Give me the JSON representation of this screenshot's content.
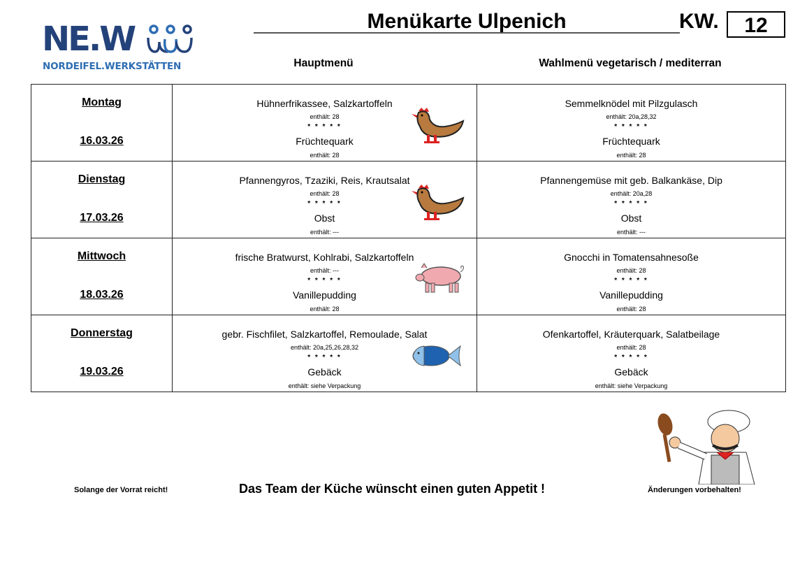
{
  "logo": {
    "text": "NE.W",
    "subtitle": "NORDEIFEL.WERKSTÄTTEN"
  },
  "header": {
    "title": "Menükarte Ulpenich",
    "kw_label": "KW.",
    "kw_value": "12"
  },
  "columns": {
    "main": "Hauptmenü",
    "alt": "Wahlmenü vegetarisch / mediterran"
  },
  "days": [
    {
      "name": "Montag",
      "date": "16.03.26",
      "icon": "chicken-icon",
      "main": {
        "dish": "Hühnerfrikassee, Salzkartoffeln",
        "allergens": "enthält: 28",
        "stars": "* * * * *",
        "dessert": "Früchtequark",
        "dessert_allergens": "enthält: 28"
      },
      "alt": {
        "dish": "Semmelknödel mit Pilzgulasch",
        "allergens": "enthält: 20a,28,32",
        "stars": "* * * * *",
        "dessert": "Früchtequark",
        "dessert_allergens": "enthält: 28"
      }
    },
    {
      "name": "Dienstag",
      "date": "17.03.26",
      "icon": "chicken-icon",
      "main": {
        "dish": "Pfannengyros, Tzaziki, Reis, Krautsalat",
        "allergens": "enthält: 28",
        "stars": "* * * * *",
        "dessert": "Obst",
        "dessert_allergens": "enthält: ---"
      },
      "alt": {
        "dish": "Pfannengemüse mit geb. Balkankäse, Dip",
        "allergens": "enthält: 20a,28",
        "stars": "* * * * *",
        "dessert": "Obst",
        "dessert_allergens": "enthält: ---"
      }
    },
    {
      "name": "Mittwoch",
      "date": "18.03.26",
      "icon": "pig-icon",
      "main": {
        "dish": "frische Bratwurst, Kohlrabi, Salzkartoffeln",
        "allergens": "enthält: ---",
        "stars": "* * * * *",
        "dessert": "Vanillepudding",
        "dessert_allergens": "enthält: 28"
      },
      "alt": {
        "dish": "Gnocchi in Tomatensahnesoße",
        "allergens": "enthält: 28",
        "stars": "* * * * *",
        "dessert": "Vanillepudding",
        "dessert_allergens": "enthält: 28"
      }
    },
    {
      "name": "Donnerstag",
      "date": "19.03.26",
      "icon": "fish-icon",
      "main": {
        "dish": "gebr. Fischfilet, Salzkartoffel, Remoulade, Salat",
        "allergens": "enthält: 20a,25,26,28,32",
        "stars": "* * * * *",
        "dessert": "Gebäck",
        "dessert_allergens": "enthält: siehe Verpackung"
      },
      "alt": {
        "dish": "Ofenkartoffel, Kräuterquark, Salatbeilage",
        "allergens": "enthält: 28",
        "stars": "* * * * *",
        "dessert": "Gebäck",
        "dessert_allergens": "enthält: siehe Verpackung"
      }
    }
  ],
  "footer": {
    "left": "Solange der Vorrat reicht!",
    "center": "Das Team der Küche wünscht einen guten Appetit !",
    "right": "Änderungen vorbehalten!"
  },
  "colors": {
    "logo_dark": "#24427a",
    "logo_light": "#2e6db3"
  }
}
